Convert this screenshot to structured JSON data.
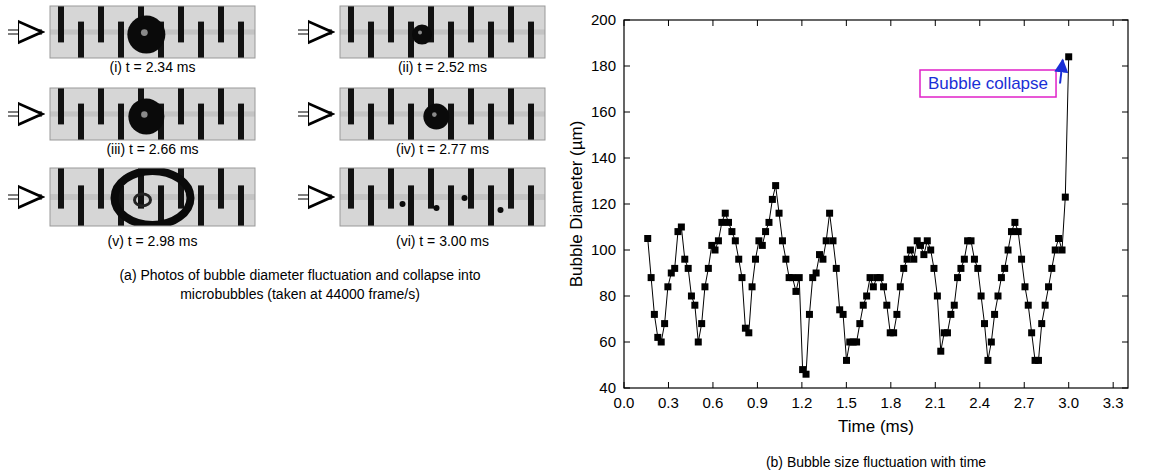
{
  "chart_data": {
    "type": "line",
    "title": "(b) Bubble size fluctuation with time",
    "x_label": "Time (ms)",
    "y_label": "Bubble Diameter (µm)",
    "annotations": [
      {
        "text": "Bubble collapse"
      }
    ],
    "color": "#000000",
    "marker": "square",
    "grid": false,
    "xlim": [
      0,
      3.4
    ],
    "xticks": [
      {
        "value": 0,
        "label": "0.0"
      },
      0.3,
      0.6,
      0.9,
      1.2,
      1.5,
      1.8,
      2.1,
      2.4,
      2.7,
      {
        "value": 3,
        "label": "3.0"
      },
      3.3
    ],
    "ylim": [
      40,
      200
    ],
    "yticks": [
      40,
      60,
      80,
      100,
      120,
      140,
      160,
      180,
      200
    ],
    "x": [
      0.16,
      0.183,
      0.205,
      0.228,
      0.251,
      0.274,
      0.296,
      0.319,
      0.342,
      0.364,
      0.387,
      0.41,
      0.433,
      0.455,
      0.478,
      0.501,
      0.524,
      0.546,
      0.569,
      0.592,
      0.614,
      0.637,
      0.66,
      0.683,
      0.705,
      0.728,
      0.751,
      0.774,
      0.796,
      0.819,
      0.842,
      0.864,
      0.887,
      0.91,
      0.933,
      0.955,
      0.978,
      1.001,
      1.023,
      1.046,
      1.069,
      1.092,
      1.114,
      1.137,
      1.16,
      1.182,
      1.205,
      1.228,
      1.251,
      1.273,
      1.296,
      1.319,
      1.342,
      1.364,
      1.387,
      1.41,
      1.432,
      1.455,
      1.478,
      1.501,
      1.523,
      1.546,
      1.569,
      1.591,
      1.614,
      1.637,
      1.66,
      1.682,
      1.705,
      1.728,
      1.751,
      1.773,
      1.796,
      1.819,
      1.841,
      1.864,
      1.887,
      1.91,
      1.932,
      1.955,
      1.978,
      2.0,
      2.023,
      2.046,
      2.069,
      2.091,
      2.114,
      2.137,
      2.16,
      2.182,
      2.205,
      2.228,
      2.25,
      2.273,
      2.296,
      2.318,
      2.341,
      2.364,
      2.387,
      2.409,
      2.432,
      2.455,
      2.478,
      2.5,
      2.523,
      2.546,
      2.568,
      2.591,
      2.614,
      2.637,
      2.659,
      2.682,
      2.705,
      2.727,
      2.75,
      2.773,
      2.796,
      2.818,
      2.841,
      2.864,
      2.886,
      2.909,
      2.932,
      2.955,
      2.977,
      3.0
    ],
    "values": [
      105,
      88,
      72,
      62,
      60,
      68,
      84,
      90,
      92,
      108,
      110,
      96,
      92,
      80,
      76,
      60,
      68,
      84,
      92,
      102,
      100,
      104,
      112,
      116,
      112,
      108,
      104,
      96,
      88,
      66,
      64,
      84,
      96,
      104,
      102,
      108,
      112,
      122,
      128,
      116,
      104,
      96,
      88,
      88,
      82,
      88,
      48,
      46,
      72,
      88,
      90,
      98,
      96,
      104,
      116,
      104,
      92,
      74,
      72,
      52,
      60,
      60,
      60,
      68,
      76,
      80,
      88,
      84,
      88,
      88,
      84,
      76,
      64,
      64,
      72,
      84,
      92,
      96,
      100,
      96,
      104,
      102,
      98,
      104,
      100,
      92,
      80,
      56,
      64,
      64,
      72,
      76,
      88,
      92,
      96,
      104,
      104,
      96,
      92,
      80,
      68,
      52,
      60,
      72,
      80,
      88,
      92,
      100,
      108,
      112,
      108,
      96,
      84,
      76,
      64,
      52,
      52,
      68,
      76,
      84,
      92,
      100,
      105,
      100,
      123,
      184
    ]
  },
  "photos": {
    "caption": "(a) Photos of bubble diameter fluctuation and collapse into microbubbles (taken at 44000 frame/s)",
    "frames": [
      {
        "label": "(i) t = 2.34 ms"
      },
      {
        "label": "(ii) t = 2.52 ms"
      },
      {
        "label": "(iii) t = 2.66 ms"
      },
      {
        "label": "(iv) t = 2.77 ms"
      },
      {
        "label": "(v) t = 2.98 ms"
      },
      {
        "label": "(vi) t = 3.00 ms"
      }
    ]
  }
}
